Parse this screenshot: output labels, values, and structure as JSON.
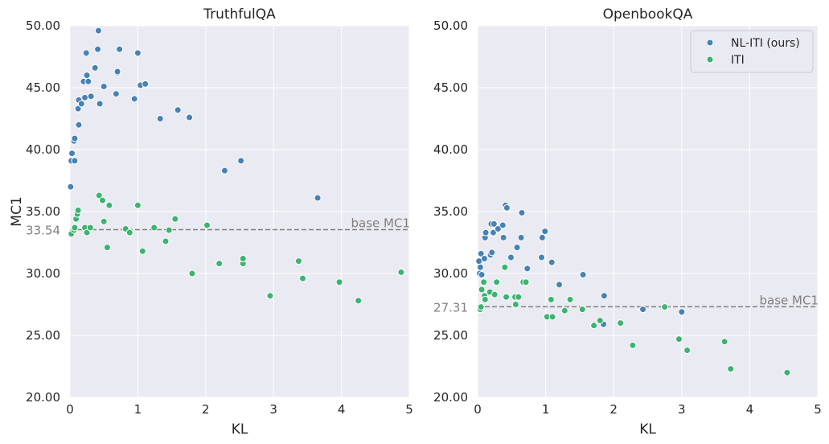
{
  "chart_data": [
    {
      "type": "scatter",
      "title": "TruthfulQA",
      "xlabel": "KL",
      "ylabel": "MC1",
      "xlim": [
        0,
        5
      ],
      "ylim": [
        20,
        50
      ],
      "xticks": [
        "0",
        "1",
        "2",
        "3",
        "4",
        "5"
      ],
      "yticks": [
        "20.00",
        "25.00",
        "30.00",
        "35.00",
        "40.00",
        "45.00",
        "50.00"
      ],
      "grid": true,
      "baseline": {
        "value": 33.54,
        "label": "base MC1",
        "value_label": "33.54"
      },
      "series": [
        {
          "name": "NL-ITI (ours)",
          "color": "#4682b4",
          "points": [
            [
              0.01,
              37.0
            ],
            [
              0.02,
              39.1
            ],
            [
              0.03,
              39.7
            ],
            [
              0.06,
              40.7
            ],
            [
              0.07,
              40.9
            ],
            [
              0.07,
              39.1
            ],
            [
              0.12,
              43.3
            ],
            [
              0.13,
              44.0
            ],
            [
              0.13,
              42.0
            ],
            [
              0.17,
              43.7
            ],
            [
              0.2,
              45.5
            ],
            [
              0.22,
              44.2
            ],
            [
              0.24,
              47.8
            ],
            [
              0.25,
              46.0
            ],
            [
              0.27,
              45.5
            ],
            [
              0.31,
              44.3
            ],
            [
              0.37,
              46.6
            ],
            [
              0.41,
              48.1
            ],
            [
              0.42,
              49.6
            ],
            [
              0.44,
              43.7
            ],
            [
              0.5,
              45.1
            ],
            [
              0.68,
              44.5
            ],
            [
              0.7,
              46.2
            ],
            [
              0.7,
              46.3
            ],
            [
              0.73,
              48.1
            ],
            [
              0.95,
              44.1
            ],
            [
              1.0,
              47.8
            ],
            [
              1.04,
              45.2
            ],
            [
              1.11,
              45.3
            ],
            [
              1.33,
              42.5
            ],
            [
              1.59,
              43.2
            ],
            [
              1.76,
              42.6
            ],
            [
              2.28,
              38.3
            ],
            [
              2.52,
              39.1
            ],
            [
              3.65,
              36.1
            ]
          ]
        },
        {
          "name": "ITI",
          "color": "#3cb371",
          "points": [
            [
              0.02,
              33.2
            ],
            [
              0.06,
              33.5
            ],
            [
              0.07,
              33.7
            ],
            [
              0.09,
              34.4
            ],
            [
              0.11,
              34.8
            ],
            [
              0.12,
              35.1
            ],
            [
              0.22,
              33.7
            ],
            [
              0.25,
              33.3
            ],
            [
              0.3,
              33.7
            ],
            [
              0.43,
              36.3
            ],
            [
              0.48,
              35.9
            ],
            [
              0.5,
              34.2
            ],
            [
              0.55,
              32.1
            ],
            [
              0.58,
              35.5
            ],
            [
              0.82,
              33.6
            ],
            [
              0.88,
              33.3
            ],
            [
              1.0,
              35.5
            ],
            [
              1.07,
              31.8
            ],
            [
              1.24,
              33.7
            ],
            [
              1.41,
              32.6
            ],
            [
              1.46,
              33.5
            ],
            [
              1.55,
              34.4
            ],
            [
              1.8,
              30.0
            ],
            [
              2.02,
              33.9
            ],
            [
              2.2,
              30.8
            ],
            [
              2.55,
              30.8
            ],
            [
              2.55,
              31.2
            ],
            [
              2.95,
              28.2
            ],
            [
              3.37,
              31.0
            ],
            [
              3.43,
              29.6
            ],
            [
              3.97,
              29.3
            ],
            [
              4.25,
              27.8
            ],
            [
              4.88,
              30.1
            ]
          ]
        }
      ]
    },
    {
      "type": "scatter",
      "title": "OpenbookQA",
      "xlabel": "KL",
      "ylabel": "",
      "xlim": [
        0,
        5
      ],
      "ylim": [
        20,
        50
      ],
      "xticks": [
        "0",
        "1",
        "2",
        "3",
        "4",
        "5"
      ],
      "yticks": [
        "20.00",
        "25.00",
        "30.00",
        "35.00",
        "40.00",
        "45.00",
        "50.00"
      ],
      "grid": true,
      "legend": "top-right",
      "baseline": {
        "value": 27.31,
        "label": "base MC1",
        "value_label": "27.31"
      },
      "series": [
        {
          "name": "NL-ITI (ours)",
          "color": "#4682b4",
          "points": [
            [
              0.02,
              31.0
            ],
            [
              0.03,
              30.0
            ],
            [
              0.04,
              30.5
            ],
            [
              0.05,
              31.6
            ],
            [
              0.06,
              29.9
            ],
            [
              0.1,
              31.2
            ],
            [
              0.11,
              32.9
            ],
            [
              0.12,
              33.3
            ],
            [
              0.19,
              31.5
            ],
            [
              0.2,
              34.0
            ],
            [
              0.21,
              31.7
            ],
            [
              0.23,
              33.3
            ],
            [
              0.24,
              34.0
            ],
            [
              0.3,
              33.6
            ],
            [
              0.37,
              33.9
            ],
            [
              0.38,
              32.9
            ],
            [
              0.41,
              35.5
            ],
            [
              0.43,
              35.3
            ],
            [
              0.49,
              31.3
            ],
            [
              0.58,
              32.1
            ],
            [
              0.64,
              32.9
            ],
            [
              0.65,
              34.9
            ],
            [
              0.73,
              30.4
            ],
            [
              0.94,
              31.3
            ],
            [
              0.95,
              32.9
            ],
            [
              0.99,
              33.4
            ],
            [
              1.09,
              30.9
            ],
            [
              1.2,
              29.1
            ],
            [
              1.55,
              29.9
            ],
            [
              1.85,
              25.9
            ],
            [
              1.86,
              28.2
            ],
            [
              2.43,
              27.1
            ],
            [
              3.0,
              26.9
            ]
          ]
        },
        {
          "name": "ITI",
          "color": "#3cb371",
          "points": [
            [
              0.04,
              27.1
            ],
            [
              0.05,
              27.3
            ],
            [
              0.06,
              28.7
            ],
            [
              0.09,
              29.3
            ],
            [
              0.1,
              28.2
            ],
            [
              0.11,
              27.9
            ],
            [
              0.18,
              28.5
            ],
            [
              0.25,
              28.3
            ],
            [
              0.28,
              29.3
            ],
            [
              0.4,
              30.5
            ],
            [
              0.42,
              28.1
            ],
            [
              0.55,
              28.1
            ],
            [
              0.56,
              27.5
            ],
            [
              0.6,
              28.1
            ],
            [
              0.67,
              29.3
            ],
            [
              0.71,
              29.3
            ],
            [
              1.02,
              26.5
            ],
            [
              1.08,
              27.9
            ],
            [
              1.1,
              26.5
            ],
            [
              1.28,
              27.0
            ],
            [
              1.36,
              27.9
            ],
            [
              1.54,
              27.1
            ],
            [
              1.71,
              25.8
            ],
            [
              1.8,
              26.2
            ],
            [
              2.1,
              26.0
            ],
            [
              2.28,
              24.2
            ],
            [
              2.75,
              27.3
            ],
            [
              2.96,
              24.7
            ],
            [
              3.08,
              23.8
            ],
            [
              3.63,
              24.5
            ],
            [
              3.72,
              22.3
            ],
            [
              4.55,
              22.0
            ]
          ]
        }
      ]
    }
  ]
}
